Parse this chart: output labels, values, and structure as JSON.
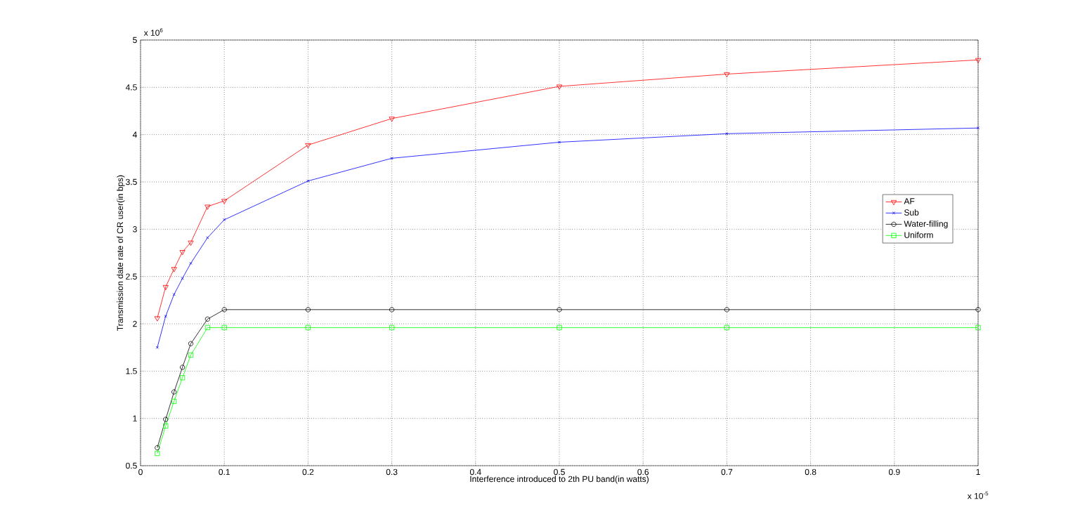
{
  "chart_data": {
    "type": "line",
    "xlabel": "Interference introduced to 2th PU band(in watts)",
    "ylabel": "Transmission date rate of CR user(in bps)",
    "annotations": [
      "x 10$^{6}$",
      "x 10$^{-5}$"
    ],
    "x": [
      0.02,
      0.03,
      0.04,
      0.05,
      0.06,
      0.08,
      0.1,
      0.2,
      0.3,
      0.5,
      0.7,
      1.0
    ],
    "series": [
      {
        "name": "AF",
        "color": "#ff0000",
        "marker": "triangle",
        "values": [
          2.06,
          2.39,
          2.58,
          2.76,
          2.86,
          3.24,
          3.3,
          3.89,
          4.17,
          4.51,
          4.64,
          4.79
        ]
      },
      {
        "name": "Sub",
        "color": "#0000ff",
        "marker": "cross",
        "values": [
          1.75,
          2.08,
          2.31,
          2.48,
          2.64,
          2.91,
          3.1,
          3.51,
          3.75,
          3.92,
          4.01,
          4.07
        ]
      },
      {
        "name": "Water-filling",
        "color": "#000000",
        "marker": "circle",
        "values": [
          0.69,
          0.99,
          1.28,
          1.54,
          1.79,
          2.05,
          2.15,
          2.15,
          2.15,
          2.15,
          2.15,
          2.15
        ]
      },
      {
        "name": "Uniform",
        "color": "#00ff00",
        "marker": "square",
        "values": [
          0.63,
          0.92,
          1.18,
          1.43,
          1.67,
          1.96,
          1.96,
          1.96,
          1.96,
          1.96,
          1.96,
          1.96
        ]
      }
    ],
    "xlim": [
      0,
      1
    ],
    "ylim": [
      0.5,
      5
    ],
    "xticks": [
      0,
      0.1,
      0.2,
      0.3,
      0.4,
      0.5,
      0.6,
      0.7,
      0.8,
      0.9,
      1
    ],
    "yticks": [
      0.5,
      1,
      1.5,
      2,
      2.5,
      3,
      3.5,
      4,
      4.5,
      5
    ],
    "grid": true,
    "legend": "right"
  }
}
